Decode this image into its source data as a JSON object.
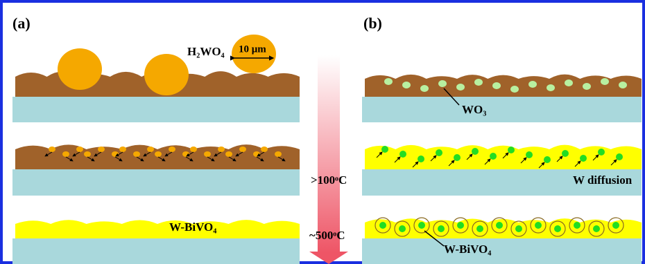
{
  "panels": [
    {
      "label": "(a)"
    },
    {
      "label": "(b)"
    }
  ],
  "labels": {
    "h2wo4": "H₂WO₄",
    "scale": "10 μm",
    "wo3": "WO₃",
    "t100": ">100ᵒC",
    "diffusion": "W diffusion",
    "bivo4_a": "W-BiVO₄",
    "t500": "~500ᵒC",
    "bivo4_b": "W-BiVO₄"
  }
}
